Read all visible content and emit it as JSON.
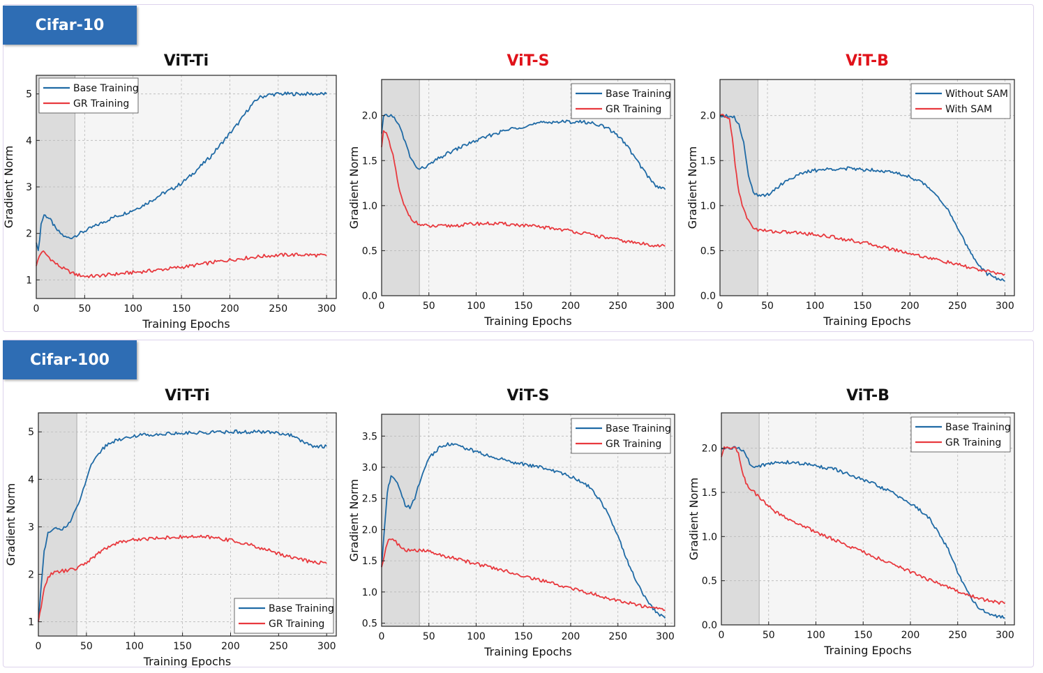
{
  "sections": [
    {
      "label": "Cifar-10"
    },
    {
      "label": "Cifar-100"
    }
  ],
  "colors": {
    "base": "#1f6aa5",
    "gr": "#e8393e",
    "title_red": "#e0121a",
    "title_black": "#111111",
    "plot_bg": "#f5f5f5",
    "shade": "#dcdcdc",
    "tag_bg": "#2e6db4"
  },
  "chart_data": [
    {
      "type": "line",
      "section": "Cifar-10",
      "title": "ViT-Ti",
      "title_color": "#111111",
      "xlabel": "Training Epochs",
      "ylabel": "Gradient Norm",
      "xlim": [
        0,
        310
      ],
      "ylim": [
        0.6,
        5.4
      ],
      "xticks": [
        0,
        50,
        100,
        150,
        200,
        250,
        300
      ],
      "yticks": [
        1,
        2,
        3,
        4,
        5
      ],
      "shade_x": [
        0,
        40
      ],
      "legend_position": "top-left",
      "series": [
        {
          "name": "Base Training",
          "color": "#1f6aa5",
          "x": [
            0,
            2,
            5,
            8,
            12,
            16,
            20,
            25,
            30,
            35,
            40,
            50,
            60,
            70,
            80,
            90,
            100,
            110,
            120,
            130,
            140,
            150,
            160,
            170,
            180,
            190,
            200,
            210,
            220,
            230,
            240,
            250,
            260,
            270,
            280,
            290,
            300
          ],
          "y": [
            1.8,
            1.6,
            2.2,
            2.4,
            2.35,
            2.25,
            2.1,
            2.0,
            1.92,
            1.9,
            1.95,
            2.05,
            2.15,
            2.25,
            2.35,
            2.42,
            2.5,
            2.6,
            2.72,
            2.85,
            2.95,
            3.08,
            3.25,
            3.45,
            3.65,
            3.9,
            4.15,
            4.4,
            4.7,
            4.92,
            4.98,
            5.0,
            5.0,
            5.0,
            5.0,
            5.0,
            5.0
          ]
        },
        {
          "name": "GR Training",
          "color": "#e8393e",
          "x": [
            0,
            3,
            6,
            10,
            15,
            20,
            25,
            30,
            35,
            40,
            50,
            60,
            70,
            80,
            90,
            100,
            120,
            140,
            160,
            180,
            200,
            220,
            240,
            260,
            280,
            300
          ],
          "y": [
            1.3,
            1.5,
            1.62,
            1.55,
            1.45,
            1.35,
            1.28,
            1.22,
            1.17,
            1.12,
            1.08,
            1.08,
            1.1,
            1.12,
            1.14,
            1.16,
            1.2,
            1.25,
            1.3,
            1.37,
            1.43,
            1.48,
            1.52,
            1.54,
            1.54,
            1.52
          ]
        }
      ]
    },
    {
      "type": "line",
      "section": "Cifar-10",
      "title": "ViT-S",
      "title_color": "#e0121a",
      "xlabel": "Training Epochs",
      "ylabel": "Gradient Norm",
      "xlim": [
        0,
        310
      ],
      "ylim": [
        0,
        2.4
      ],
      "xticks": [
        0,
        50,
        100,
        150,
        200,
        250,
        300
      ],
      "yticks": [
        0.0,
        0.5,
        1.0,
        1.5,
        2.0
      ],
      "shade_x": [
        0,
        40
      ],
      "legend_position": "top-right",
      "series": [
        {
          "name": "Base Training",
          "color": "#1f6aa5",
          "x": [
            0,
            2,
            5,
            10,
            15,
            20,
            25,
            30,
            35,
            40,
            50,
            60,
            70,
            80,
            90,
            100,
            110,
            120,
            130,
            140,
            150,
            160,
            170,
            180,
            190,
            200,
            210,
            220,
            230,
            240,
            250,
            260,
            270,
            280,
            290,
            300
          ],
          "y": [
            1.8,
            1.98,
            2.0,
            2.0,
            1.96,
            1.85,
            1.7,
            1.55,
            1.45,
            1.4,
            1.45,
            1.52,
            1.58,
            1.63,
            1.68,
            1.72,
            1.76,
            1.8,
            1.83,
            1.86,
            1.88,
            1.9,
            1.92,
            1.93,
            1.93,
            1.93,
            1.93,
            1.92,
            1.9,
            1.85,
            1.78,
            1.66,
            1.5,
            1.35,
            1.22,
            1.18
          ]
        },
        {
          "name": "GR Training",
          "color": "#e8393e",
          "x": [
            0,
            2,
            5,
            8,
            12,
            15,
            18,
            22,
            26,
            30,
            35,
            40,
            50,
            60,
            80,
            100,
            120,
            140,
            160,
            180,
            200,
            220,
            240,
            260,
            280,
            300
          ],
          "y": [
            1.65,
            1.85,
            1.8,
            1.7,
            1.55,
            1.4,
            1.2,
            1.05,
            0.95,
            0.88,
            0.82,
            0.79,
            0.77,
            0.77,
            0.78,
            0.8,
            0.8,
            0.79,
            0.77,
            0.75,
            0.72,
            0.68,
            0.64,
            0.6,
            0.57,
            0.55
          ]
        }
      ]
    },
    {
      "type": "line",
      "section": "Cifar-10",
      "title": "ViT-B",
      "title_color": "#e0121a",
      "xlabel": "Training Epochs",
      "ylabel": "Gradient Norm",
      "xlim": [
        0,
        310
      ],
      "ylim": [
        0,
        2.4
      ],
      "xticks": [
        0,
        50,
        100,
        150,
        200,
        250,
        300
      ],
      "yticks": [
        0.0,
        0.5,
        1.0,
        1.5,
        2.0
      ],
      "shade_x": [
        0,
        40
      ],
      "legend_position": "top-right",
      "series": [
        {
          "name": "Without SAM",
          "color": "#1f6aa5",
          "x": [
            0,
            5,
            10,
            15,
            20,
            25,
            30,
            35,
            40,
            50,
            60,
            70,
            80,
            90,
            100,
            110,
            120,
            130,
            140,
            150,
            160,
            170,
            180,
            190,
            200,
            210,
            220,
            230,
            240,
            250,
            260,
            270,
            280,
            290,
            300
          ],
          "y": [
            2.0,
            2.0,
            2.0,
            1.98,
            1.9,
            1.7,
            1.35,
            1.15,
            1.1,
            1.12,
            1.2,
            1.28,
            1.33,
            1.37,
            1.39,
            1.4,
            1.41,
            1.41,
            1.41,
            1.4,
            1.4,
            1.39,
            1.37,
            1.35,
            1.32,
            1.27,
            1.2,
            1.1,
            0.95,
            0.75,
            0.55,
            0.38,
            0.25,
            0.2,
            0.16
          ]
        },
        {
          "name": "With SAM",
          "color": "#e8393e",
          "x": [
            0,
            5,
            10,
            13,
            16,
            20,
            25,
            30,
            35,
            40,
            50,
            60,
            80,
            100,
            120,
            140,
            160,
            180,
            200,
            220,
            240,
            260,
            280,
            300
          ],
          "y": [
            2.0,
            2.0,
            1.95,
            1.75,
            1.45,
            1.15,
            0.95,
            0.83,
            0.76,
            0.73,
            0.72,
            0.71,
            0.7,
            0.68,
            0.65,
            0.61,
            0.57,
            0.52,
            0.47,
            0.42,
            0.37,
            0.32,
            0.27,
            0.24
          ]
        }
      ]
    },
    {
      "type": "line",
      "section": "Cifar-100",
      "title": "ViT-Ti",
      "title_color": "#111111",
      "xlabel": "Training Epochs",
      "ylabel": "Gradient Norm",
      "xlim": [
        0,
        310
      ],
      "ylim": [
        0.7,
        5.4
      ],
      "xticks": [
        0,
        50,
        100,
        150,
        200,
        250,
        300
      ],
      "yticks": [
        1,
        2,
        3,
        4,
        5
      ],
      "shade_x": [
        0,
        40
      ],
      "legend_position": "bottom-right",
      "series": [
        {
          "name": "Base Training",
          "color": "#1f6aa5",
          "x": [
            0,
            3,
            6,
            10,
            15,
            20,
            25,
            30,
            35,
            40,
            45,
            50,
            55,
            60,
            70,
            80,
            90,
            100,
            120,
            140,
            160,
            180,
            200,
            220,
            240,
            250,
            260,
            270,
            280,
            290,
            300
          ],
          "y": [
            1.0,
            1.8,
            2.5,
            2.85,
            2.95,
            2.96,
            2.95,
            3.0,
            3.2,
            3.4,
            3.7,
            4.0,
            4.3,
            4.5,
            4.7,
            4.82,
            4.88,
            4.92,
            4.95,
            4.97,
            4.98,
            4.99,
            5.0,
            5.0,
            4.99,
            4.98,
            4.95,
            4.85,
            4.75,
            4.68,
            4.7
          ]
        },
        {
          "name": "GR Training",
          "color": "#e8393e",
          "x": [
            0,
            3,
            6,
            10,
            15,
            20,
            25,
            30,
            35,
            40,
            50,
            60,
            70,
            80,
            90,
            100,
            120,
            140,
            160,
            180,
            200,
            220,
            240,
            260,
            280,
            300
          ],
          "y": [
            1.0,
            1.3,
            1.7,
            1.95,
            2.02,
            2.05,
            2.07,
            2.08,
            2.1,
            2.12,
            2.25,
            2.4,
            2.55,
            2.65,
            2.7,
            2.73,
            2.76,
            2.78,
            2.79,
            2.78,
            2.72,
            2.62,
            2.5,
            2.38,
            2.28,
            2.23
          ]
        }
      ]
    },
    {
      "type": "line",
      "section": "Cifar-100",
      "title": "ViT-S",
      "title_color": "#111111",
      "xlabel": "Training Epochs",
      "ylabel": "Gradient Norm",
      "xlim": [
        0,
        310
      ],
      "ylim": [
        0.45,
        3.85
      ],
      "xticks": [
        0,
        50,
        100,
        150,
        200,
        250,
        300
      ],
      "yticks": [
        0.5,
        1.0,
        1.5,
        2.0,
        2.5,
        3.0,
        3.5
      ],
      "shade_x": [
        0,
        40
      ],
      "legend_position": "top-right",
      "series": [
        {
          "name": "Base Training",
          "color": "#1f6aa5",
          "x": [
            0,
            3,
            6,
            10,
            15,
            20,
            25,
            30,
            35,
            40,
            45,
            50,
            60,
            70,
            80,
            90,
            100,
            110,
            120,
            130,
            140,
            150,
            160,
            170,
            180,
            190,
            200,
            210,
            220,
            230,
            240,
            250,
            260,
            270,
            280,
            290,
            300
          ],
          "y": [
            1.4,
            2.0,
            2.6,
            2.85,
            2.8,
            2.6,
            2.4,
            2.35,
            2.5,
            2.75,
            2.95,
            3.15,
            3.3,
            3.38,
            3.35,
            3.3,
            3.25,
            3.2,
            3.15,
            3.12,
            3.08,
            3.05,
            3.02,
            3.0,
            2.95,
            2.9,
            2.85,
            2.78,
            2.68,
            2.5,
            2.25,
            1.9,
            1.5,
            1.15,
            0.88,
            0.68,
            0.58
          ]
        },
        {
          "name": "GR Training",
          "color": "#e8393e",
          "x": [
            0,
            3,
            6,
            10,
            15,
            20,
            25,
            30,
            35,
            40,
            50,
            60,
            80,
            100,
            120,
            140,
            160,
            180,
            200,
            220,
            240,
            260,
            280,
            300
          ],
          "y": [
            1.4,
            1.6,
            1.8,
            1.85,
            1.8,
            1.72,
            1.68,
            1.66,
            1.66,
            1.67,
            1.65,
            1.6,
            1.53,
            1.45,
            1.38,
            1.3,
            1.22,
            1.14,
            1.06,
            0.98,
            0.9,
            0.83,
            0.76,
            0.71
          ]
        }
      ]
    },
    {
      "type": "line",
      "section": "Cifar-100",
      "title": "ViT-B",
      "title_color": "#111111",
      "xlabel": "Training Epochs",
      "ylabel": "Gradient Norm",
      "xlim": [
        0,
        310
      ],
      "ylim": [
        0,
        2.4
      ],
      "xticks": [
        0,
        50,
        100,
        150,
        200,
        250,
        300
      ],
      "yticks": [
        0.0,
        0.5,
        1.0,
        1.5,
        2.0
      ],
      "shade_x": [
        0,
        40
      ],
      "legend_position": "top-right",
      "series": [
        {
          "name": "Base Training",
          "color": "#1f6aa5",
          "x": [
            0,
            5,
            10,
            20,
            25,
            30,
            35,
            40,
            50,
            60,
            70,
            80,
            90,
            100,
            110,
            120,
            130,
            140,
            150,
            160,
            170,
            180,
            190,
            200,
            210,
            220,
            230,
            240,
            250,
            260,
            270,
            280,
            290,
            300
          ],
          "y": [
            2.0,
            2.0,
            2.0,
            2.0,
            1.95,
            1.82,
            1.8,
            1.8,
            1.82,
            1.84,
            1.84,
            1.83,
            1.82,
            1.8,
            1.78,
            1.76,
            1.72,
            1.68,
            1.64,
            1.6,
            1.55,
            1.5,
            1.44,
            1.37,
            1.3,
            1.2,
            1.05,
            0.85,
            0.6,
            0.38,
            0.22,
            0.14,
            0.1,
            0.08
          ]
        },
        {
          "name": "GR Training",
          "color": "#e8393e",
          "x": [
            0,
            3,
            6,
            10,
            15,
            18,
            22,
            26,
            30,
            35,
            40,
            50,
            60,
            80,
            100,
            120,
            140,
            160,
            180,
            200,
            220,
            240,
            260,
            280,
            300
          ],
          "y": [
            1.9,
            2.0,
            2.0,
            2.0,
            2.0,
            1.95,
            1.75,
            1.6,
            1.54,
            1.5,
            1.44,
            1.34,
            1.26,
            1.15,
            1.05,
            0.96,
            0.87,
            0.78,
            0.69,
            0.6,
            0.51,
            0.42,
            0.34,
            0.28,
            0.24
          ]
        }
      ]
    }
  ]
}
